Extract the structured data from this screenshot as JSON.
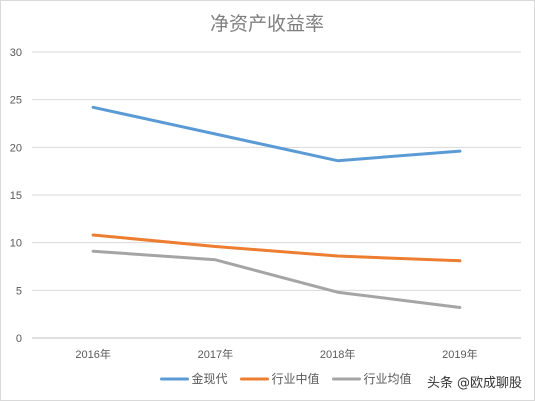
{
  "chart_data": {
    "type": "line",
    "title": "净资产收益率",
    "categories": [
      "2016年",
      "2017年",
      "2018年",
      "2019年"
    ],
    "ylim": [
      0,
      30
    ],
    "yticks": [
      0,
      5,
      10,
      15,
      20,
      25,
      30
    ],
    "grid": true,
    "legend_position": "bottom",
    "series": [
      {
        "name": "金现代",
        "values": [
          24.2,
          21.4,
          18.6,
          19.6
        ],
        "color": "#5b9bd5"
      },
      {
        "name": "行业中值",
        "values": [
          10.8,
          9.6,
          8.6,
          8.1
        ],
        "color": "#ed7d31"
      },
      {
        "name": "行业均值",
        "values": [
          9.1,
          8.2,
          4.8,
          3.2
        ],
        "color": "#a5a5a5"
      }
    ]
  },
  "watermark": {
    "prefix": "头条",
    "handle": "@欧成聊股"
  }
}
